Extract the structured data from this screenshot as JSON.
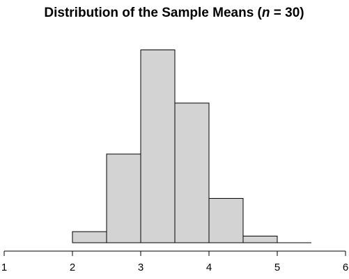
{
  "chart_data": {
    "type": "bar",
    "title": {
      "prefix": "Distribution of the Sample Means (",
      "var": "n",
      "suffix": " = 30)"
    },
    "xlabel": "",
    "ylabel": "",
    "xlim": [
      1,
      6
    ],
    "x_ticks": [
      1,
      2,
      3,
      4,
      5,
      6
    ],
    "ylim": [
      0,
      0.9
    ],
    "bins": [
      {
        "x0": 2.0,
        "x1": 2.5,
        "density": 0.05
      },
      {
        "x0": 2.5,
        "x1": 3.0,
        "density": 0.4
      },
      {
        "x0": 3.0,
        "x1": 3.5,
        "density": 0.87
      },
      {
        "x0": 3.5,
        "x1": 4.0,
        "density": 0.63
      },
      {
        "x0": 4.0,
        "x1": 4.5,
        "density": 0.2
      },
      {
        "x0": 4.5,
        "x1": 5.0,
        "density": 0.03
      },
      {
        "x0": 5.0,
        "x1": 5.5,
        "density": 0.0
      }
    ],
    "bar_color": "#d3d3d3",
    "border_color": "#000000",
    "grid": false
  }
}
